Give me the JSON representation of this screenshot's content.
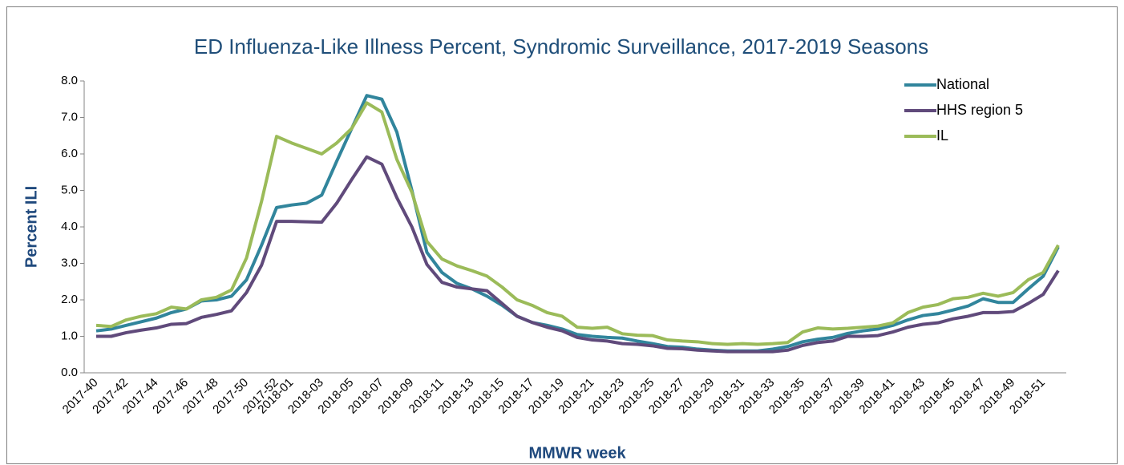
{
  "chart_data": {
    "type": "line",
    "title": "ED Influenza-Like Illness Percent, Syndromic Surveillance, 2017-2019 Seasons",
    "x_label": "MMWR week",
    "y_label": "Percent ILI",
    "categories": [
      "2017-40",
      null,
      "2017-42",
      null,
      "2017-44",
      null,
      "2017-46",
      null,
      "2017-48",
      null,
      "2017-50",
      null,
      "2017-52",
      "2018-01",
      null,
      "2018-03",
      null,
      "2018-05",
      null,
      "2018-07",
      null,
      "2018-09",
      null,
      "2018-11",
      null,
      "2018-13",
      null,
      "2018-15",
      null,
      "2018-17",
      null,
      "2018-19",
      null,
      "2018-21",
      null,
      "2018-23",
      null,
      "2018-25",
      null,
      "2018-27",
      null,
      "2018-29",
      null,
      "2018-31",
      null,
      "2018-33",
      null,
      "2018-35",
      null,
      "2018-37",
      null,
      "2018-39",
      null,
      "2018-41",
      null,
      "2018-43",
      null,
      "2018-45",
      null,
      "2018-47",
      null,
      "2018-49",
      null,
      "2018-51",
      null
    ],
    "series": [
      {
        "name": "National",
        "color": "#31859c",
        "values": [
          1.15,
          1.2,
          1.3,
          1.4,
          1.5,
          1.65,
          1.75,
          1.97,
          2.0,
          2.1,
          2.55,
          3.5,
          4.53,
          4.6,
          4.65,
          4.87,
          5.8,
          6.7,
          7.6,
          7.5,
          6.6,
          5.0,
          3.3,
          2.75,
          2.45,
          2.3,
          2.1,
          1.85,
          1.55,
          1.38,
          1.3,
          1.2,
          1.05,
          1.0,
          0.97,
          0.95,
          0.87,
          0.8,
          0.72,
          0.7,
          0.65,
          0.62,
          0.6,
          0.6,
          0.6,
          0.65,
          0.72,
          0.85,
          0.92,
          0.97,
          1.08,
          1.15,
          1.2,
          1.3,
          1.45,
          1.57,
          1.62,
          1.72,
          1.83,
          2.03,
          1.93,
          1.93,
          2.3,
          2.65,
          3.45
        ]
      },
      {
        "name": "HHS region 5",
        "color": "#604a7b",
        "values": [
          1.0,
          1.0,
          1.1,
          1.17,
          1.23,
          1.33,
          1.35,
          1.52,
          1.6,
          1.7,
          2.2,
          2.95,
          4.15,
          4.15,
          4.14,
          4.13,
          4.65,
          5.3,
          5.92,
          5.72,
          4.8,
          4.0,
          2.97,
          2.48,
          2.35,
          2.3,
          2.25,
          1.9,
          1.55,
          1.38,
          1.25,
          1.15,
          0.97,
          0.9,
          0.87,
          0.8,
          0.78,
          0.74,
          0.67,
          0.66,
          0.62,
          0.6,
          0.58,
          0.58,
          0.58,
          0.58,
          0.62,
          0.75,
          0.83,
          0.87,
          1.0,
          1.0,
          1.02,
          1.12,
          1.25,
          1.33,
          1.37,
          1.48,
          1.55,
          1.65,
          1.65,
          1.68,
          1.9,
          2.15,
          2.8
        ]
      },
      {
        "name": "IL",
        "color": "#9bbb59",
        "values": [
          1.3,
          1.27,
          1.45,
          1.55,
          1.62,
          1.8,
          1.75,
          2.0,
          2.07,
          2.27,
          3.15,
          4.7,
          6.48,
          6.3,
          6.15,
          6.0,
          6.3,
          6.7,
          7.4,
          7.15,
          5.85,
          4.95,
          3.6,
          3.12,
          2.93,
          2.8,
          2.65,
          2.35,
          2.0,
          1.85,
          1.65,
          1.55,
          1.25,
          1.22,
          1.25,
          1.07,
          1.03,
          1.02,
          0.9,
          0.87,
          0.85,
          0.8,
          0.78,
          0.8,
          0.78,
          0.8,
          0.83,
          1.12,
          1.23,
          1.2,
          1.22,
          1.25,
          1.28,
          1.37,
          1.65,
          1.8,
          1.87,
          2.03,
          2.07,
          2.18,
          2.1,
          2.2,
          2.55,
          2.75,
          3.5
        ]
      }
    ],
    "ylim": [
      0,
      8
    ],
    "yticks": [
      {
        "value": 0,
        "label": "0.0"
      },
      {
        "value": 1,
        "label": "1.0"
      },
      {
        "value": 2,
        "label": "2.0"
      },
      {
        "value": 3,
        "label": "3.0"
      },
      {
        "value": 4,
        "label": "4.0"
      },
      {
        "value": 5,
        "label": "5.0"
      },
      {
        "value": 6,
        "label": "6.0"
      },
      {
        "value": 7,
        "label": "7.0"
      },
      {
        "value": 8,
        "label": "8.0"
      }
    ],
    "legend": "upper right",
    "grid": false
  }
}
